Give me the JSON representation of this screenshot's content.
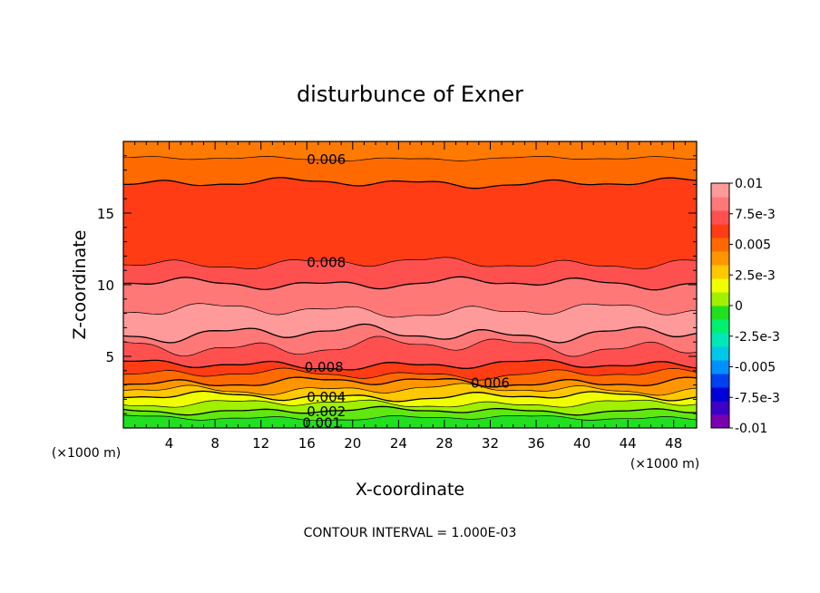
{
  "chart_data": {
    "type": "contour",
    "title": "disturbunce of Exner",
    "xlabel": "X-coordinate",
    "ylabel": "Z-coordinate",
    "x_unit": "(×1000 m)",
    "y_unit": "(×1000 m)",
    "xlim": [
      0,
      50
    ],
    "ylim": [
      0,
      20
    ],
    "x_ticks": [
      "4",
      "8",
      "12",
      "16",
      "20",
      "24",
      "28",
      "32",
      "36",
      "40",
      "44",
      "48"
    ],
    "y_ticks": [
      "5",
      "10",
      "15"
    ],
    "footer": "CONTOUR INTERVAL = 1.000E-03",
    "contour_interval": 0.001,
    "colorbar": {
      "min": -0.01,
      "max": 0.01,
      "labels": [
        "0.01",
        "7.5e-3",
        "0.005",
        "2.5e-3",
        "0",
        "-2.5e-3",
        "-0.005",
        "-7.5e-3",
        "-0.01"
      ],
      "label_values": [
        0.01,
        0.0075,
        0.005,
        0.0025,
        0,
        -0.0025,
        -0.005,
        -0.0075,
        -0.01
      ],
      "colors_bottom_to_top": [
        "#7a00b0",
        "#3c00c8",
        "#0000d8",
        "#0040f0",
        "#0090ff",
        "#00c8e8",
        "#00e8b8",
        "#00f070",
        "#20e020",
        "#a0f000",
        "#f0ff00",
        "#ffc800",
        "#ff9600",
        "#ff6a00",
        "#ff3c14",
        "#ff5050",
        "#ff7878",
        "#ff9a9a"
      ]
    },
    "contour_labels": [
      {
        "text": "0.006",
        "x": 17.7,
        "z": 18.8
      },
      {
        "text": "0.008",
        "x": 17.7,
        "z": 11.6
      },
      {
        "text": "0.008",
        "x": 17.5,
        "z": 4.3
      },
      {
        "text": "0.006",
        "x": 32.0,
        "z": 3.2
      },
      {
        "text": "0.004",
        "x": 17.7,
        "z": 2.2
      },
      {
        "text": "0.002",
        "x": 17.7,
        "z": 1.2
      },
      {
        "text": "0.001",
        "x": 17.3,
        "z": 0.4
      }
    ],
    "bands": [
      {
        "value": 0.0005,
        "color": "#20e020",
        "base": 0.0,
        "wave": 0.1
      },
      {
        "value": 0.0015,
        "color": "#60e810",
        "base": 0.7,
        "wave": 0.12
      },
      {
        "value": 0.0025,
        "color": "#a0f000",
        "base": 1.2,
        "wave": 0.15
      },
      {
        "value": 0.0035,
        "color": "#f0ff00",
        "base": 1.7,
        "wave": 0.18
      },
      {
        "value": 0.0045,
        "color": "#ffc800",
        "base": 2.2,
        "wave": 0.2
      },
      {
        "value": 0.0055,
        "color": "#ff9600",
        "base": 2.7,
        "wave": 0.22
      },
      {
        "value": 0.0065,
        "color": "#ff6a00",
        "base": 3.2,
        "wave": 0.22
      },
      {
        "value": 0.0075,
        "color": "#ff3c14",
        "base": 3.75,
        "wave": 0.22
      },
      {
        "value": 0.0085,
        "color": "#ff5050",
        "base": 4.4,
        "wave": 0.22
      },
      {
        "value": 0.0095,
        "color": "#ff7878",
        "base": 5.7,
        "wave": 0.4
      },
      {
        "value": 0.0098,
        "color": "#ff9a9a",
        "base": 6.6,
        "wave": 0.35
      },
      {
        "value": 0.0095,
        "color": "#ff7878",
        "base": 8.2,
        "wave": 0.3
      },
      {
        "value": 0.0085,
        "color": "#ff5050",
        "base": 10.1,
        "wave": 0.25
      },
      {
        "value": 0.0075,
        "color": "#ff3c14",
        "base": 11.5,
        "wave": 0.25
      },
      {
        "value": 0.0065,
        "color": "#ff6a00",
        "base": 17.1,
        "wave": 0.2
      },
      {
        "value": 0.0055,
        "color": "#ff7a00",
        "base": 18.8,
        "wave": 0.1
      }
    ]
  }
}
